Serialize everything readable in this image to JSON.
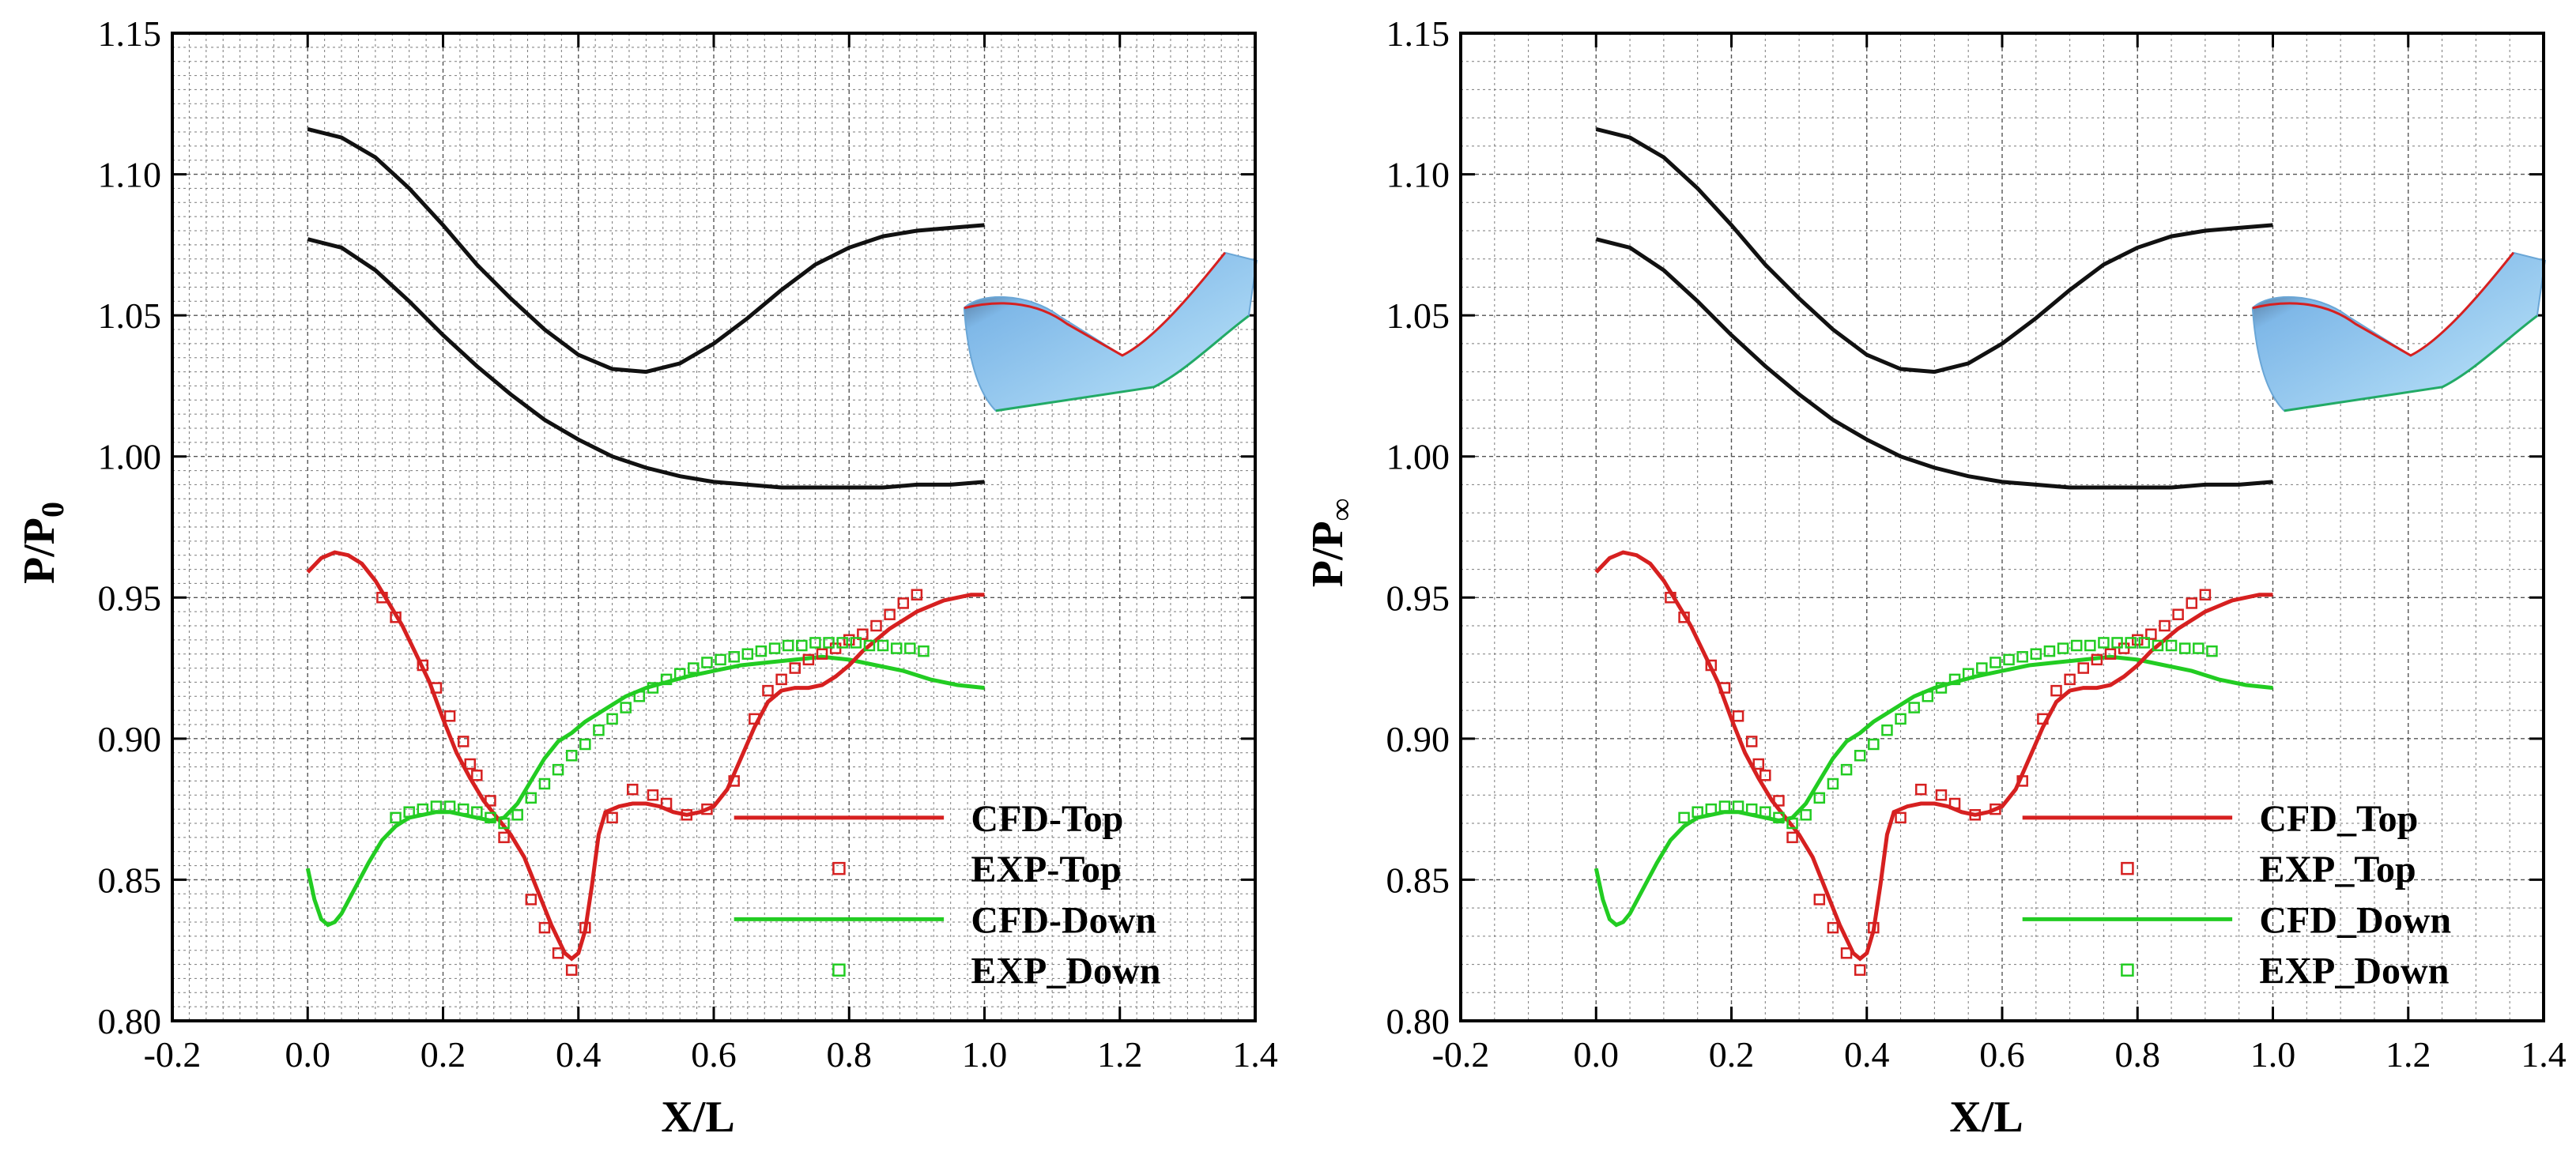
{
  "chart_data": [
    {
      "type": "line",
      "xlabel": "X/L",
      "ylabel_main": "P/P",
      "ylabel_sub": "0",
      "xlim": [
        -0.2,
        1.4
      ],
      "ylim": [
        0.8,
        1.15
      ],
      "xticks": [
        "-0.2",
        "0.0",
        "0.2",
        "0.4",
        "0.6",
        "0.8",
        "1.0",
        "1.2",
        "1.4"
      ],
      "yticks": [
        "0.80",
        "0.85",
        "0.90",
        "0.95",
        "1.00",
        "1.05",
        "1.10",
        "1.15"
      ],
      "legend_labels": [
        "CFD-Top",
        "EXP-Top",
        "CFD-Down",
        "EXP_Down"
      ]
    },
    {
      "type": "line",
      "xlabel": "X/L",
      "ylabel_main": "P/P",
      "ylabel_sub": "∞",
      "xlim": [
        -0.2,
        1.4
      ],
      "ylim": [
        0.8,
        1.15
      ],
      "xticks": [
        "-0.2",
        "0.0",
        "0.2",
        "0.4",
        "0.6",
        "0.8",
        "1.0",
        "1.2",
        "1.4"
      ],
      "yticks": [
        "0.80",
        "0.85",
        "0.90",
        "0.95",
        "1.00",
        "1.05",
        "1.10",
        "1.15"
      ],
      "legend_labels": [
        "CFD_Top",
        "EXP_Top",
        "CFD_Down",
        "EXP_Down"
      ]
    }
  ],
  "shared_series": {
    "colors": {
      "top": "#d62020",
      "down": "#22cc22",
      "geometry": "#111111"
    },
    "geometry_upper": [
      [
        0,
        1.116
      ],
      [
        0.05,
        1.113
      ],
      [
        0.1,
        1.106
      ],
      [
        0.15,
        1.095
      ],
      [
        0.2,
        1.082
      ],
      [
        0.25,
        1.068
      ],
      [
        0.3,
        1.056
      ],
      [
        0.35,
        1.045
      ],
      [
        0.4,
        1.036
      ],
      [
        0.45,
        1.031
      ],
      [
        0.5,
        1.03
      ],
      [
        0.55,
        1.033
      ],
      [
        0.6,
        1.04
      ],
      [
        0.65,
        1.049
      ],
      [
        0.7,
        1.059
      ],
      [
        0.75,
        1.068
      ],
      [
        0.8,
        1.074
      ],
      [
        0.85,
        1.078
      ],
      [
        0.9,
        1.08
      ],
      [
        0.95,
        1.081
      ],
      [
        1.0,
        1.082
      ]
    ],
    "geometry_lower": [
      [
        0,
        1.077
      ],
      [
        0.05,
        1.074
      ],
      [
        0.1,
        1.066
      ],
      [
        0.15,
        1.055
      ],
      [
        0.2,
        1.043
      ],
      [
        0.25,
        1.032
      ],
      [
        0.3,
        1.022
      ],
      [
        0.35,
        1.013
      ],
      [
        0.4,
        1.006
      ],
      [
        0.45,
        1.0
      ],
      [
        0.5,
        0.996
      ],
      [
        0.55,
        0.993
      ],
      [
        0.6,
        0.991
      ],
      [
        0.65,
        0.99
      ],
      [
        0.7,
        0.989
      ],
      [
        0.75,
        0.989
      ],
      [
        0.8,
        0.989
      ],
      [
        0.85,
        0.989
      ],
      [
        0.9,
        0.99
      ],
      [
        0.95,
        0.99
      ],
      [
        1.0,
        0.991
      ]
    ],
    "cfd_top": [
      [
        0,
        0.959
      ],
      [
        0.02,
        0.964
      ],
      [
        0.04,
        0.966
      ],
      [
        0.06,
        0.965
      ],
      [
        0.08,
        0.962
      ],
      [
        0.1,
        0.956
      ],
      [
        0.12,
        0.948
      ],
      [
        0.14,
        0.94
      ],
      [
        0.16,
        0.93
      ],
      [
        0.18,
        0.92
      ],
      [
        0.2,
        0.907
      ],
      [
        0.22,
        0.895
      ],
      [
        0.24,
        0.886
      ],
      [
        0.26,
        0.878
      ],
      [
        0.28,
        0.872
      ],
      [
        0.3,
        0.866
      ],
      [
        0.32,
        0.858
      ],
      [
        0.34,
        0.846
      ],
      [
        0.36,
        0.834
      ],
      [
        0.38,
        0.824
      ],
      [
        0.39,
        0.822
      ],
      [
        0.4,
        0.824
      ],
      [
        0.41,
        0.832
      ],
      [
        0.42,
        0.848
      ],
      [
        0.43,
        0.866
      ],
      [
        0.44,
        0.874
      ],
      [
        0.46,
        0.876
      ],
      [
        0.48,
        0.877
      ],
      [
        0.5,
        0.877
      ],
      [
        0.52,
        0.876
      ],
      [
        0.54,
        0.874
      ],
      [
        0.56,
        0.873
      ],
      [
        0.58,
        0.874
      ],
      [
        0.6,
        0.876
      ],
      [
        0.62,
        0.882
      ],
      [
        0.64,
        0.893
      ],
      [
        0.66,
        0.904
      ],
      [
        0.68,
        0.913
      ],
      [
        0.7,
        0.917
      ],
      [
        0.72,
        0.918
      ],
      [
        0.74,
        0.918
      ],
      [
        0.76,
        0.919
      ],
      [
        0.78,
        0.922
      ],
      [
        0.8,
        0.926
      ],
      [
        0.82,
        0.931
      ],
      [
        0.84,
        0.935
      ],
      [
        0.86,
        0.939
      ],
      [
        0.88,
        0.942
      ],
      [
        0.9,
        0.945
      ],
      [
        0.92,
        0.947
      ],
      [
        0.94,
        0.949
      ],
      [
        0.96,
        0.95
      ],
      [
        0.98,
        0.951
      ],
      [
        1.0,
        0.951
      ]
    ],
    "exp_top": [
      [
        0.11,
        0.95
      ],
      [
        0.13,
        0.943
      ],
      [
        0.17,
        0.926
      ],
      [
        0.19,
        0.918
      ],
      [
        0.21,
        0.908
      ],
      [
        0.23,
        0.899
      ],
      [
        0.24,
        0.891
      ],
      [
        0.25,
        0.887
      ],
      [
        0.27,
        0.878
      ],
      [
        0.29,
        0.865
      ],
      [
        0.33,
        0.843
      ],
      [
        0.35,
        0.833
      ],
      [
        0.37,
        0.824
      ],
      [
        0.39,
        0.818
      ],
      [
        0.41,
        0.833
      ],
      [
        0.45,
        0.872
      ],
      [
        0.48,
        0.882
      ],
      [
        0.51,
        0.88
      ],
      [
        0.53,
        0.877
      ],
      [
        0.56,
        0.873
      ],
      [
        0.59,
        0.875
      ],
      [
        0.63,
        0.885
      ],
      [
        0.66,
        0.907
      ],
      [
        0.68,
        0.917
      ],
      [
        0.7,
        0.921
      ],
      [
        0.72,
        0.925
      ],
      [
        0.74,
        0.928
      ],
      [
        0.76,
        0.93
      ],
      [
        0.78,
        0.932
      ],
      [
        0.8,
        0.935
      ],
      [
        0.82,
        0.937
      ],
      [
        0.84,
        0.94
      ],
      [
        0.86,
        0.944
      ],
      [
        0.88,
        0.948
      ],
      [
        0.9,
        0.951
      ]
    ],
    "cfd_down": [
      [
        0,
        0.854
      ],
      [
        0.01,
        0.843
      ],
      [
        0.02,
        0.836
      ],
      [
        0.03,
        0.834
      ],
      [
        0.04,
        0.835
      ],
      [
        0.05,
        0.838
      ],
      [
        0.07,
        0.847
      ],
      [
        0.09,
        0.856
      ],
      [
        0.11,
        0.864
      ],
      [
        0.13,
        0.869
      ],
      [
        0.15,
        0.872
      ],
      [
        0.17,
        0.873
      ],
      [
        0.19,
        0.874
      ],
      [
        0.21,
        0.874
      ],
      [
        0.23,
        0.873
      ],
      [
        0.25,
        0.872
      ],
      [
        0.27,
        0.871
      ],
      [
        0.29,
        0.872
      ],
      [
        0.31,
        0.877
      ],
      [
        0.33,
        0.885
      ],
      [
        0.35,
        0.893
      ],
      [
        0.37,
        0.899
      ],
      [
        0.39,
        0.902
      ],
      [
        0.41,
        0.906
      ],
      [
        0.43,
        0.909
      ],
      [
        0.45,
        0.912
      ],
      [
        0.47,
        0.915
      ],
      [
        0.5,
        0.918
      ],
      [
        0.53,
        0.92
      ],
      [
        0.56,
        0.922
      ],
      [
        0.6,
        0.924
      ],
      [
        0.64,
        0.926
      ],
      [
        0.68,
        0.927
      ],
      [
        0.72,
        0.928
      ],
      [
        0.76,
        0.929
      ],
      [
        0.8,
        0.928
      ],
      [
        0.84,
        0.926
      ],
      [
        0.88,
        0.924
      ],
      [
        0.92,
        0.921
      ],
      [
        0.96,
        0.919
      ],
      [
        1.0,
        0.918
      ]
    ],
    "exp_down": [
      [
        0.13,
        0.872
      ],
      [
        0.15,
        0.874
      ],
      [
        0.17,
        0.875
      ],
      [
        0.19,
        0.876
      ],
      [
        0.21,
        0.876
      ],
      [
        0.23,
        0.875
      ],
      [
        0.25,
        0.874
      ],
      [
        0.27,
        0.872
      ],
      [
        0.29,
        0.87
      ],
      [
        0.31,
        0.873
      ],
      [
        0.33,
        0.879
      ],
      [
        0.35,
        0.884
      ],
      [
        0.37,
        0.889
      ],
      [
        0.39,
        0.894
      ],
      [
        0.41,
        0.898
      ],
      [
        0.43,
        0.903
      ],
      [
        0.45,
        0.907
      ],
      [
        0.47,
        0.911
      ],
      [
        0.49,
        0.915
      ],
      [
        0.51,
        0.918
      ],
      [
        0.53,
        0.921
      ],
      [
        0.55,
        0.923
      ],
      [
        0.57,
        0.925
      ],
      [
        0.59,
        0.927
      ],
      [
        0.61,
        0.928
      ],
      [
        0.63,
        0.929
      ],
      [
        0.65,
        0.93
      ],
      [
        0.67,
        0.931
      ],
      [
        0.69,
        0.932
      ],
      [
        0.71,
        0.933
      ],
      [
        0.73,
        0.933
      ],
      [
        0.75,
        0.934
      ],
      [
        0.77,
        0.934
      ],
      [
        0.79,
        0.934
      ],
      [
        0.81,
        0.934
      ],
      [
        0.83,
        0.933
      ],
      [
        0.85,
        0.933
      ],
      [
        0.87,
        0.932
      ],
      [
        0.89,
        0.932
      ],
      [
        0.91,
        0.931
      ]
    ]
  }
}
